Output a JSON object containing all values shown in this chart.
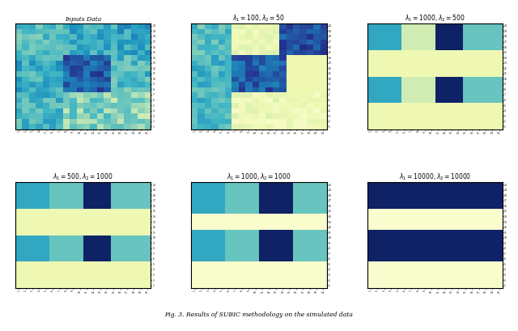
{
  "titles": [
    "Inputs Data",
    "$\\lambda_1 = 100, \\lambda_2 = 50$",
    "$\\lambda_1 = 1000, \\lambda_2 = 500$",
    "$\\lambda_1 = 500, \\lambda_2 = 1000$",
    "$\\lambda_1 = 1000, \\lambda_2 = 1000$",
    "$\\lambda_1 = 10000, \\lambda_2 = 10000$"
  ],
  "cmap": "YlGnBu",
  "caption": "Fig. 3. Results of SUBIC methodology on the simulated data",
  "background": "#ffffff",
  "figsize": [
    6.4,
    4.09
  ],
  "dpi": 100,
  "colors": {
    "very_light": 0.04,
    "light": 0.12,
    "light_green": 0.22,
    "cyan_light": 0.42,
    "cyan": 0.55,
    "cyan_dark": 0.65,
    "dark": 0.85,
    "very_dark": 0.97
  }
}
